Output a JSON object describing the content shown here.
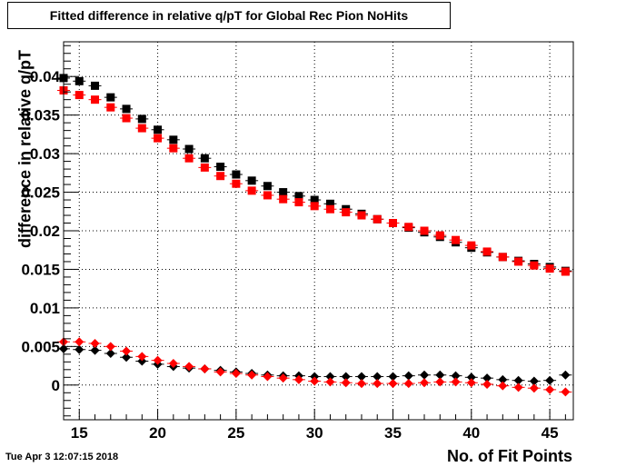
{
  "header": {
    "title": "Fitted difference in relative q/pT for Global Rec Pion NoHits"
  },
  "footer": {
    "timestamp": "Tue Apr  3 12:07:15 2018"
  },
  "colors": {
    "series_black": "#000000",
    "series_red": "#ff0000",
    "grid": "#000000"
  },
  "chart_data": {
    "type": "scatter",
    "title": "Fitted difference in relative q/pT for Global Rec Pion NoHits",
    "xlabel": "No. of Fit Points",
    "ylabel": "difference in relative q/pT",
    "xlim": [
      14,
      46.5
    ],
    "ylim": [
      -0.0045,
      0.0445
    ],
    "xticks": [
      15,
      20,
      25,
      30,
      35,
      40,
      45
    ],
    "yticks": [
      0,
      0.005,
      0.01,
      0.015,
      0.02,
      0.025,
      0.03,
      0.035,
      0.04
    ],
    "ytick_labels": [
      "0",
      "0.005",
      "0.01",
      "0.015",
      "0.02",
      "0.025",
      "0.03",
      "0.035",
      "0.04"
    ],
    "grid": true,
    "x": [
      14,
      15,
      16,
      17,
      18,
      19,
      20,
      21,
      22,
      23,
      24,
      25,
      26,
      27,
      28,
      29,
      30,
      31,
      32,
      33,
      34,
      35,
      36,
      37,
      38,
      39,
      40,
      41,
      42,
      43,
      44,
      45,
      46
    ],
    "series": [
      {
        "marker": "square",
        "color": "#000000",
        "values": [
          0.0398,
          0.0394,
          0.0388,
          0.0373,
          0.0358,
          0.0345,
          0.0331,
          0.0318,
          0.0306,
          0.0294,
          0.0283,
          0.0273,
          0.0265,
          0.0258,
          0.025,
          0.0245,
          0.024,
          0.0235,
          0.0228,
          0.0222,
          0.0215,
          0.021,
          0.0204,
          0.0198,
          0.0192,
          0.0185,
          0.0178,
          0.0172,
          0.0166,
          0.0161,
          0.0157,
          0.0153,
          0.0148
        ]
      },
      {
        "marker": "square",
        "color": "#ff0000",
        "values": [
          0.0382,
          0.0376,
          0.037,
          0.036,
          0.0346,
          0.0333,
          0.032,
          0.0307,
          0.0294,
          0.0282,
          0.0271,
          0.0261,
          0.0252,
          0.0246,
          0.0241,
          0.0237,
          0.0232,
          0.0228,
          0.0224,
          0.022,
          0.0215,
          0.021,
          0.0205,
          0.02,
          0.0194,
          0.0188,
          0.0181,
          0.0173,
          0.0166,
          0.016,
          0.0155,
          0.0151,
          0.0147
        ]
      },
      {
        "marker": "diamond",
        "color": "#000000",
        "values": [
          0.0047,
          0.0046,
          0.0045,
          0.0041,
          0.0036,
          0.0031,
          0.0027,
          0.0024,
          0.0022,
          0.0021,
          0.0019,
          0.0017,
          0.0015,
          0.0013,
          0.0012,
          0.0012,
          0.0011,
          0.0011,
          0.0011,
          0.0011,
          0.0011,
          0.0011,
          0.0012,
          0.0013,
          0.0013,
          0.0012,
          0.001,
          0.0009,
          0.0007,
          0.0006,
          0.0005,
          0.0006,
          0.0013
        ]
      },
      {
        "marker": "diamond",
        "color": "#ff0000",
        "values": [
          0.0056,
          0.0056,
          0.0054,
          0.005,
          0.0044,
          0.0037,
          0.0032,
          0.0028,
          0.0024,
          0.0021,
          0.0017,
          0.0015,
          0.0013,
          0.0011,
          0.0009,
          0.0007,
          0.0005,
          0.0004,
          0.0003,
          0.0002,
          0.0002,
          0.0002,
          0.0002,
          0.0003,
          0.0004,
          0.0004,
          0.0003,
          0.0001,
          -0.0001,
          -0.0003,
          -0.0004,
          -0.0006,
          -0.0009
        ]
      }
    ]
  }
}
